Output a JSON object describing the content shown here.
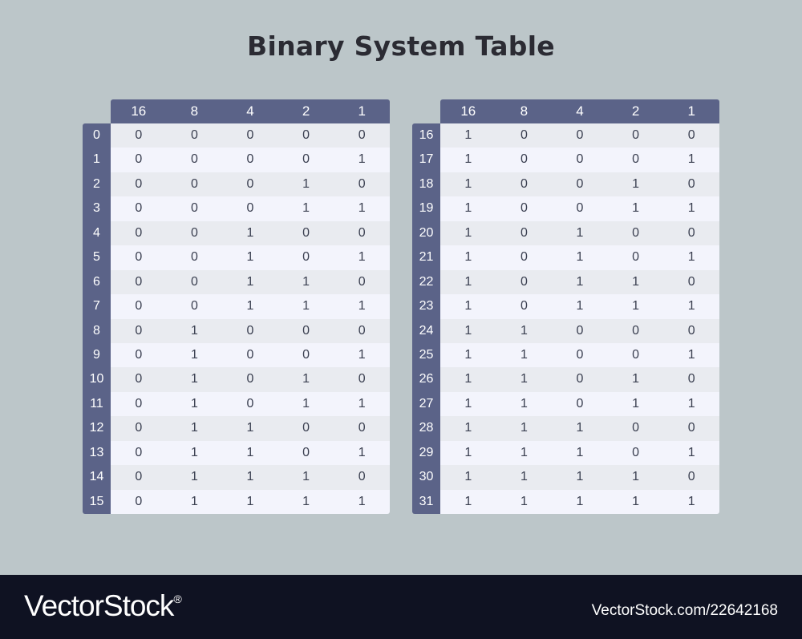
{
  "title": "Binary System Table",
  "headers": [
    "16",
    "8",
    "4",
    "2",
    "1"
  ],
  "left_rows": [
    {
      "label": "0",
      "bits": [
        "0",
        "0",
        "0",
        "0",
        "0"
      ]
    },
    {
      "label": "1",
      "bits": [
        "0",
        "0",
        "0",
        "0",
        "1"
      ]
    },
    {
      "label": "2",
      "bits": [
        "0",
        "0",
        "0",
        "1",
        "0"
      ]
    },
    {
      "label": "3",
      "bits": [
        "0",
        "0",
        "0",
        "1",
        "1"
      ]
    },
    {
      "label": "4",
      "bits": [
        "0",
        "0",
        "1",
        "0",
        "0"
      ]
    },
    {
      "label": "5",
      "bits": [
        "0",
        "0",
        "1",
        "0",
        "1"
      ]
    },
    {
      "label": "6",
      "bits": [
        "0",
        "0",
        "1",
        "1",
        "0"
      ]
    },
    {
      "label": "7",
      "bits": [
        "0",
        "0",
        "1",
        "1",
        "1"
      ]
    },
    {
      "label": "8",
      "bits": [
        "0",
        "1",
        "0",
        "0",
        "0"
      ]
    },
    {
      "label": "9",
      "bits": [
        "0",
        "1",
        "0",
        "0",
        "1"
      ]
    },
    {
      "label": "10",
      "bits": [
        "0",
        "1",
        "0",
        "1",
        "0"
      ]
    },
    {
      "label": "11",
      "bits": [
        "0",
        "1",
        "0",
        "1",
        "1"
      ]
    },
    {
      "label": "12",
      "bits": [
        "0",
        "1",
        "1",
        "0",
        "0"
      ]
    },
    {
      "label": "13",
      "bits": [
        "0",
        "1",
        "1",
        "0",
        "1"
      ]
    },
    {
      "label": "14",
      "bits": [
        "0",
        "1",
        "1",
        "1",
        "0"
      ]
    },
    {
      "label": "15",
      "bits": [
        "0",
        "1",
        "1",
        "1",
        "1"
      ]
    }
  ],
  "right_rows": [
    {
      "label": "16",
      "bits": [
        "1",
        "0",
        "0",
        "0",
        "0"
      ]
    },
    {
      "label": "17",
      "bits": [
        "1",
        "0",
        "0",
        "0",
        "1"
      ]
    },
    {
      "label": "18",
      "bits": [
        "1",
        "0",
        "0",
        "1",
        "0"
      ]
    },
    {
      "label": "19",
      "bits": [
        "1",
        "0",
        "0",
        "1",
        "1"
      ]
    },
    {
      "label": "20",
      "bits": [
        "1",
        "0",
        "1",
        "0",
        "0"
      ]
    },
    {
      "label": "21",
      "bits": [
        "1",
        "0",
        "1",
        "0",
        "1"
      ]
    },
    {
      "label": "22",
      "bits": [
        "1",
        "0",
        "1",
        "1",
        "0"
      ]
    },
    {
      "label": "23",
      "bits": [
        "1",
        "0",
        "1",
        "1",
        "1"
      ]
    },
    {
      "label": "24",
      "bits": [
        "1",
        "1",
        "0",
        "0",
        "0"
      ]
    },
    {
      "label": "25",
      "bits": [
        "1",
        "1",
        "0",
        "0",
        "1"
      ]
    },
    {
      "label": "26",
      "bits": [
        "1",
        "1",
        "0",
        "1",
        "0"
      ]
    },
    {
      "label": "27",
      "bits": [
        "1",
        "1",
        "0",
        "1",
        "1"
      ]
    },
    {
      "label": "28",
      "bits": [
        "1",
        "1",
        "1",
        "0",
        "0"
      ]
    },
    {
      "label": "29",
      "bits": [
        "1",
        "1",
        "1",
        "0",
        "1"
      ]
    },
    {
      "label": "30",
      "bits": [
        "1",
        "1",
        "1",
        "1",
        "0"
      ]
    },
    {
      "label": "31",
      "bits": [
        "1",
        "1",
        "1",
        "1",
        "1"
      ]
    }
  ],
  "footer": {
    "brand": "VectorStock",
    "registered": "®",
    "credit": "VectorStock.com/22642168"
  },
  "colors": {
    "background": "#bcc6c9",
    "header": "#5b6388",
    "row_alt": "#e9ebf0",
    "row": "#f3f4fc",
    "footer": "#0f1222"
  }
}
